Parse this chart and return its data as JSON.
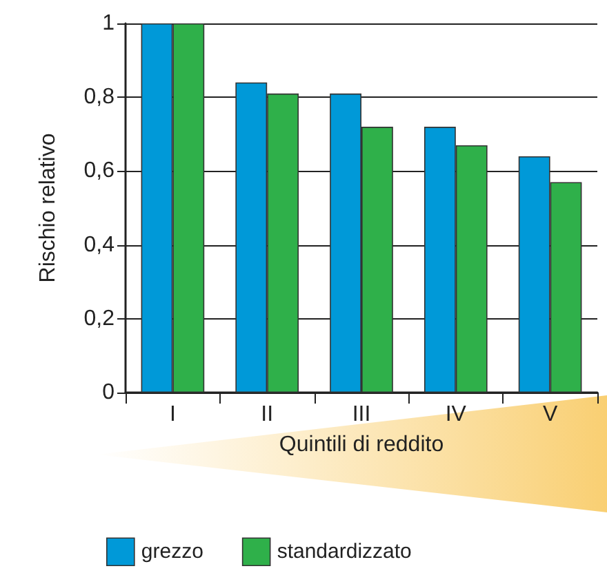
{
  "chart_data": {
    "type": "bar",
    "xlabel": "Quintili di reddito",
    "ylabel": "Rischio relativo",
    "categories": [
      "I",
      "II",
      "III",
      "IV",
      "V"
    ],
    "series": [
      {
        "name": "grezzo",
        "color": "#0099d8",
        "values": [
          1,
          0.84,
          0.81,
          0.72,
          0.64
        ]
      },
      {
        "name": "standardizzato",
        "color": "#2fb04a",
        "values": [
          1,
          0.81,
          0.72,
          0.67,
          0.57
        ]
      }
    ],
    "ylim": [
      0,
      1
    ],
    "yticks": [
      0,
      {
        "value": 0.2,
        "label": "0,2"
      },
      {
        "value": 0.4,
        "label": "0,4"
      },
      {
        "value": 0.6,
        "label": "0,6"
      },
      {
        "value": 0.8,
        "label": "0,8"
      },
      1
    ],
    "grid": "y",
    "legend": "bottom left"
  }
}
